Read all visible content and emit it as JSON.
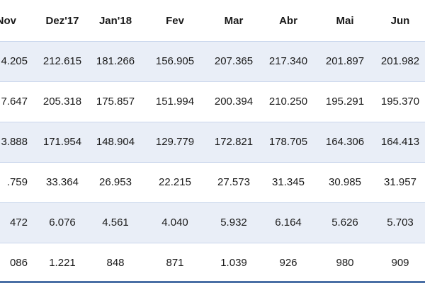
{
  "table": {
    "header": [
      "Nov",
      "Dez'17",
      "Jan'18",
      "Fev",
      "Mar",
      "Abr",
      "Mai",
      "Jun"
    ],
    "rows": [
      [
        "4.205",
        "212.615",
        "181.266",
        "156.905",
        "207.365",
        "217.340",
        "201.897",
        "201.982"
      ],
      [
        "7.647",
        "205.318",
        "175.857",
        "151.994",
        "200.394",
        "210.250",
        "195.291",
        "195.370"
      ],
      [
        "3.888",
        "171.954",
        "148.904",
        "129.779",
        "172.821",
        "178.705",
        "164.306",
        "164.413"
      ],
      [
        ".759",
        "33.364",
        "26.953",
        "22.215",
        "27.573",
        "31.345",
        "30.985",
        "31.957"
      ],
      [
        "472",
        "6.076",
        "4.561",
        "4.040",
        "5.932",
        "6.164",
        "5.626",
        "5.703"
      ],
      [
        "086",
        "1.221",
        "848",
        "871",
        "1.039",
        "926",
        "980",
        "909"
      ]
    ]
  }
}
